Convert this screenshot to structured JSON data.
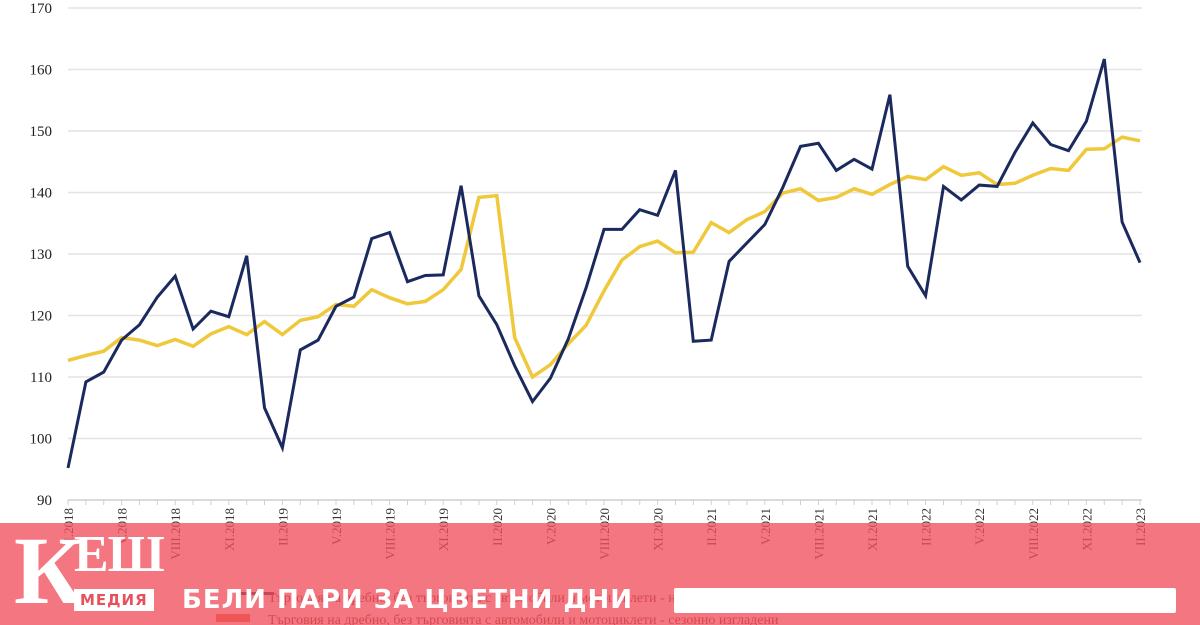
{
  "chart_data": {
    "type": "line",
    "title": "",
    "xlabel": "",
    "ylabel": "",
    "ylim": [
      90,
      170
    ],
    "yticks": [
      90,
      100,
      110,
      120,
      130,
      140,
      150,
      160,
      170
    ],
    "grid": true,
    "legend_position": "bottom",
    "x_tick_labels": [
      "II.2018",
      "V.2018",
      "VIII.2018",
      "XI.2018",
      "II.2019",
      "V.2019",
      "VIII.2019",
      "XI.2019",
      "II.2020",
      "V.2020",
      "VIII.2020",
      "XI.2020",
      "II.2021",
      "V.2021",
      "VIII.2021",
      "XI.2021",
      "II.2022",
      "V.2022",
      "VIII.2022",
      "XI.2022",
      "II.2023"
    ],
    "x_start": "II.2018",
    "x_end": "II.2023",
    "series": [
      {
        "name": "Търговия на дребно, без търговията с автомобили и мотоциклети - неизгладени",
        "color": "#1b2a5e",
        "values": [
          95.2,
          109.2,
          110.8,
          116,
          118.5,
          123,
          126.4,
          117.8,
          120.7,
          119.8,
          129.7,
          105,
          98.5,
          114.4,
          116,
          121.5,
          123,
          132.5,
          133.5,
          125.5,
          126.5,
          126.6,
          141.1,
          123.2,
          118.5,
          111.8,
          106,
          109.8,
          116.2,
          124.5,
          134,
          134,
          137.2,
          136.3,
          143.6,
          115.8,
          116,
          128.8,
          131.8,
          134.8,
          140.8,
          147.5,
          148,
          143.6,
          145.4,
          143.8,
          155.9,
          128,
          123.2,
          141,
          138.8,
          141.2,
          141,
          146.5,
          151.3,
          147.8,
          146.8,
          151.6,
          161.7,
          135.2,
          128.6
        ]
      },
      {
        "name": "Търговия на дребно, без търговията с автомобили и мотоциклети - сезонно изгладени",
        "color": "#f0c83c",
        "values": [
          112.7,
          113.5,
          114.2,
          116.4,
          116,
          115.1,
          116.1,
          115,
          117,
          118.2,
          116.9,
          119,
          116.9,
          119.2,
          119.8,
          121.8,
          121.5,
          124.2,
          122.9,
          121.9,
          122.3,
          124.2,
          127.5,
          139.2,
          139.5,
          116.4,
          110,
          112,
          115.4,
          118.4,
          124,
          129,
          131.2,
          132.1,
          130.2,
          130.3,
          135.1,
          133.5,
          135.6,
          136.9,
          139.9,
          140.6,
          138.7,
          139.2,
          140.6,
          139.7,
          141.3,
          142.6,
          142.1,
          144.2,
          142.8,
          143.2,
          141.3,
          141.5,
          142.8,
          143.9,
          143.6,
          147,
          147.1,
          149,
          148.4
        ]
      }
    ]
  },
  "legend": {
    "items": [
      {
        "label": "Търговия на дребно, без търговията с автомобили и мотоциклети - неизгладени",
        "color": "#1b2a5e"
      },
      {
        "label": "Търговия на дребно, без търговията с автомобили и мотоциклети - сезонно изгладени",
        "color": "#e8703c"
      }
    ]
  },
  "banner": {
    "logo_main": "К",
    "logo_rest": "ЕШ",
    "logo_sub": "МЕДИЯ",
    "slogan": "БЕЛИ ПАРИ ЗА ЦВЕТНИ ДНИ",
    "background": "#f0505c"
  }
}
